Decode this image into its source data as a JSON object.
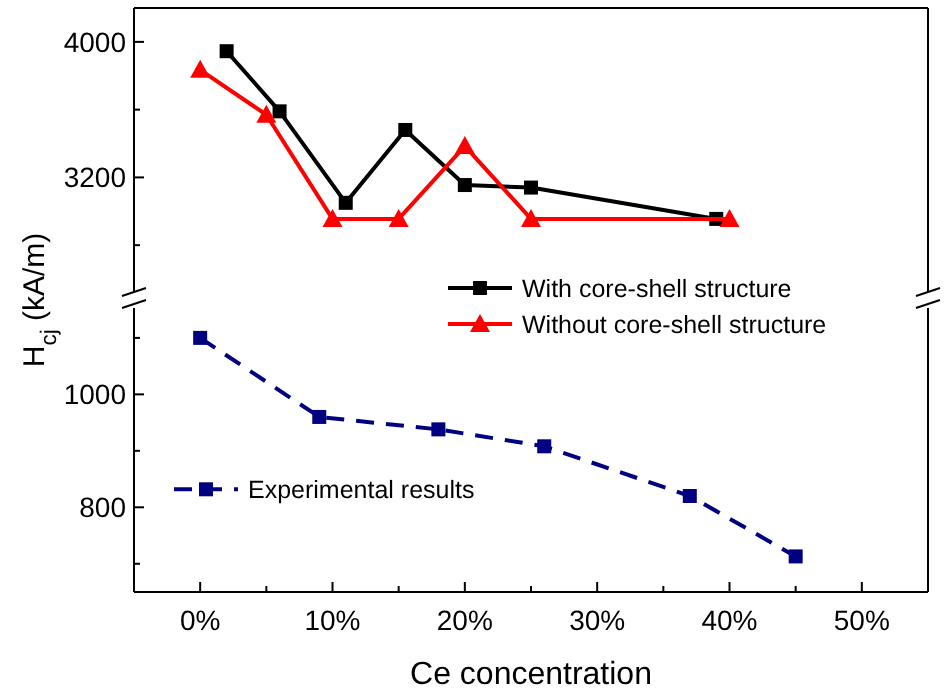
{
  "chart_data": [
    {
      "type": "line",
      "ylabel": "H$_{cj}$ (kA/m)",
      "xlim": [
        -5,
        55
      ],
      "ylim": [
        2500,
        4200
      ],
      "yticks": [
        {
          "value": 2800,
          "label": null
        },
        {
          "value": 3200,
          "label": "3200"
        },
        {
          "value": 3600,
          "label": null
        },
        {
          "value": 4000,
          "label": "4000"
        }
      ],
      "tick_labels": "y",
      "legend": "bottom right",
      "line_style": "solid",
      "series": [
        {
          "name": "With core-shell structure",
          "color": "#000000",
          "marker": "square",
          "x": [
            2,
            6,
            11,
            15.5,
            20,
            25,
            39
          ],
          "values": [
            3945,
            3590,
            3050,
            3480,
            3155,
            3140,
            2955
          ]
        },
        {
          "name": "Without core-shell structure",
          "color": "#ff0000",
          "marker": "triangle",
          "x": [
            0,
            5,
            10,
            15,
            20,
            25,
            40
          ],
          "values": [
            3835,
            3570,
            2955,
            2955,
            3385,
            2955,
            2955
          ]
        }
      ]
    },
    {
      "type": "line",
      "xlabel": "Ce concentration",
      "xlim": [
        -5,
        55
      ],
      "xticks": [
        {
          "value": 0,
          "label": "0%"
        },
        {
          "value": 5,
          "label": null
        },
        {
          "value": 10,
          "label": "10%"
        },
        {
          "value": 15,
          "label": null
        },
        {
          "value": 20,
          "label": "20%"
        },
        {
          "value": 25,
          "label": null
        },
        {
          "value": 30,
          "label": "30%"
        },
        {
          "value": 35,
          "label": null
        },
        {
          "value": 40,
          "label": "40%"
        },
        {
          "value": 45,
          "label": null
        },
        {
          "value": 50,
          "label": "50%"
        }
      ],
      "ylim": [
        650,
        1160
      ],
      "yticks": [
        {
          "value": 700,
          "label": null
        },
        {
          "value": 800,
          "label": "800"
        },
        {
          "value": 900,
          "label": null
        },
        {
          "value": 1000,
          "label": "1000"
        },
        {
          "value": 1100,
          "label": null
        }
      ],
      "legend": "bottom left",
      "series": [
        {
          "name": "Experimental results",
          "color": "#000080",
          "marker": "square",
          "line_style": "dashed",
          "x": [
            0,
            9,
            18,
            26,
            37,
            45
          ],
          "values": [
            1100,
            960,
            938,
            908,
            820,
            713
          ]
        }
      ]
    }
  ]
}
